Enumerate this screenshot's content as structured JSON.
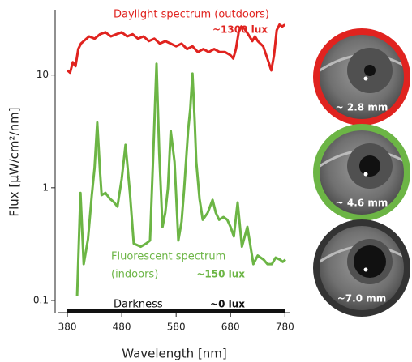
{
  "chart_data": {
    "type": "line",
    "log_y": true,
    "xlabel": "Wavelength [nm]",
    "ylabel": "Flux [µW/cm²/nm]",
    "xlim": [
      365,
      790
    ],
    "xticks": [
      380,
      480,
      580,
      680,
      780
    ],
    "ylim": [
      0.078,
      38
    ],
    "yticks": [
      10,
      1,
      0.1
    ],
    "series": [
      {
        "label_lines": [
          "Daylight spectrum (outdoors)"
        ],
        "lux": "~1300 lux",
        "color": "#e0231f",
        "x": [
          380,
          385,
          390,
          395,
          400,
          405,
          410,
          420,
          430,
          440,
          450,
          460,
          470,
          480,
          490,
          500,
          510,
          520,
          530,
          540,
          550,
          560,
          570,
          580,
          590,
          600,
          610,
          620,
          630,
          640,
          650,
          660,
          670,
          680,
          685,
          690,
          695,
          700,
          705,
          710,
          715,
          720,
          725,
          730,
          740,
          750,
          755,
          760,
          765,
          770,
          775,
          780
        ],
        "values": [
          11,
          10.5,
          13,
          12,
          17,
          19,
          20,
          22,
          21,
          23,
          24,
          22,
          23,
          24,
          22,
          23,
          21,
          22,
          20,
          21,
          19,
          20,
          19,
          18,
          19,
          17,
          18,
          16,
          17,
          16,
          17,
          16,
          16,
          15,
          14,
          17,
          24,
          27,
          26,
          24,
          22,
          20,
          22,
          20,
          18,
          13,
          11,
          15,
          25,
          28,
          27,
          28
        ]
      },
      {
        "label_lines": [
          "Fluorescent spectrum",
          "(indoors)"
        ],
        "lux": "~150 lux",
        "color": "#6cb545",
        "x": [
          398,
          404,
          410,
          418,
          425,
          430,
          435,
          440,
          443,
          450,
          458,
          465,
          472,
          480,
          487,
          495,
          502,
          515,
          525,
          532,
          538,
          544,
          549,
          555,
          560,
          565,
          570,
          577,
          584,
          590,
          595,
          602,
          606,
          610,
          614,
          617,
          623,
          629,
          638,
          647,
          653,
          659,
          667,
          674,
          680,
          686,
          693,
          701,
          711,
          722,
          730,
          741,
          748,
          756,
          763,
          771,
          776,
          781
        ],
        "values": [
          0.11,
          0.9,
          0.21,
          0.35,
          0.86,
          1.5,
          3.8,
          1.4,
          0.86,
          0.9,
          0.8,
          0.75,
          0.68,
          1.2,
          2.4,
          0.9,
          0.32,
          0.3,
          0.32,
          0.34,
          2,
          12.6,
          2,
          0.45,
          0.6,
          1,
          3.2,
          1.7,
          0.34,
          0.5,
          1,
          3.2,
          5,
          10.3,
          4,
          1.7,
          0.8,
          0.52,
          0.6,
          0.78,
          0.6,
          0.52,
          0.55,
          0.52,
          0.45,
          0.37,
          0.74,
          0.3,
          0.45,
          0.21,
          0.25,
          0.23,
          0.21,
          0.21,
          0.24,
          0.23,
          0.22,
          0.23
        ]
      }
    ],
    "darkness": "Darkness",
    "darkness_lux": "~0 lux"
  },
  "pupils": [
    {
      "label": "~ 2.8 mm",
      "color": "#e0231f"
    },
    {
      "label": "~ 4.6 mm",
      "color": "#6cb545"
    },
    {
      "label": "~7.0 mm",
      "color": "#333333"
    }
  ]
}
